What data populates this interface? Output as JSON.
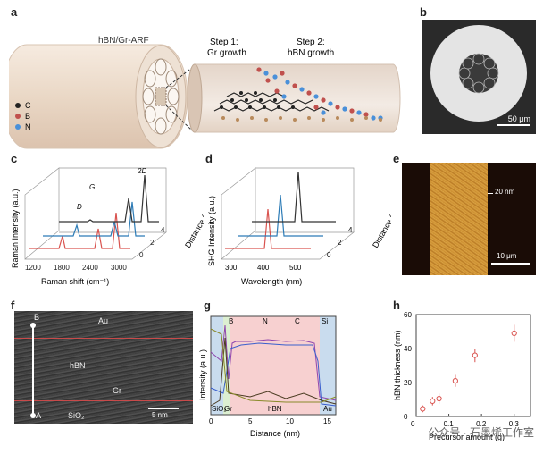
{
  "panel_labels": {
    "a": "a",
    "b": "b",
    "c": "c",
    "d": "d",
    "e": "e",
    "f": "f",
    "g": "g",
    "h": "h"
  },
  "panel_a": {
    "fiber_label": "hBN/Gr-ARF",
    "step1": "Step 1:",
    "step1_b": "Gr growth",
    "step2": "Step 2:",
    "step2_b": "hBN growth",
    "legend": [
      {
        "symbol": "C",
        "color": "#222222"
      },
      {
        "symbol": "B",
        "color": "#c0504d"
      },
      {
        "symbol": "N",
        "color": "#4a90d9"
      }
    ]
  },
  "panel_b": {
    "scale_label": "50 μm"
  },
  "panel_c": {
    "ylabel": "Raman Intensity (a.u.)",
    "xlabel": "Raman shift (cm⁻¹)",
    "zlabel": "Distance (cm)",
    "peak_labels": [
      "G",
      "2D",
      "D"
    ],
    "x_ticks": [
      "1200",
      "1800",
      "2400",
      "3000"
    ],
    "z_ticks": [
      "0",
      "2",
      "4"
    ]
  },
  "panel_d": {
    "ylabel": "SHG Intensity (a.u.)",
    "xlabel": "Wavelength (nm)",
    "zlabel": "Distance (cm)",
    "x_ticks": [
      "300",
      "400",
      "500"
    ],
    "z_ticks": [
      "0",
      "2",
      "4"
    ]
  },
  "panel_e": {
    "height_label": "20 nm",
    "scale_label": "10 μm"
  },
  "panel_f": {
    "top_label": "B",
    "bottom_label": "A",
    "layers": [
      "Au",
      "hBN",
      "Gr",
      "SiO₂"
    ],
    "scale_label": "5 nm"
  },
  "panel_g": {
    "ylabel": "Intensity (a.u.)",
    "xlabel": "Distance (nm)",
    "legend": [
      "B",
      "N",
      "C",
      "Si"
    ],
    "region_labels": [
      "SiO₂",
      "Gr",
      "hBN",
      "Au"
    ],
    "x_ticks": [
      "0",
      "5",
      "10",
      "15"
    ]
  },
  "chart_data": {
    "type": "scatter",
    "xlabel": "Precursor amount (g)",
    "ylabel": "hBN thickness (nm)",
    "xlim": [
      0,
      0.35
    ],
    "ylim": [
      0,
      60
    ],
    "x_ticks": [
      "0",
      "0.1",
      "0.2",
      "0.3"
    ],
    "y_ticks": [
      "0",
      "20",
      "40",
      "60"
    ],
    "points": [
      {
        "x": 0.02,
        "y": 4.5,
        "err": 2
      },
      {
        "x": 0.05,
        "y": 9,
        "err": 2.5
      },
      {
        "x": 0.07,
        "y": 10.5,
        "err": 3
      },
      {
        "x": 0.12,
        "y": 21,
        "err": 3.5
      },
      {
        "x": 0.18,
        "y": 36,
        "err": 4
      },
      {
        "x": 0.3,
        "y": 49,
        "err": 5
      }
    ],
    "marker_color": "#d9534f"
  },
  "watermark": "公众号 · 石墨烯工作室"
}
